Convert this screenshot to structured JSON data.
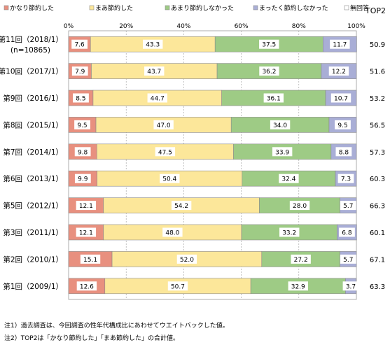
{
  "colors": {
    "seg1": "#e8907f",
    "seg2": "#fce79a",
    "seg3": "#9ecb85",
    "seg4": "#a9aed6",
    "seg5": "#ffffff",
    "border": "#8a8a8a",
    "grid": "#9a9a9a"
  },
  "chart_data": {
    "type": "bar",
    "orientation": "horizontal",
    "stacked": true,
    "xlim": [
      0,
      100
    ],
    "x_tick_labels": [
      "0%",
      "20%",
      "40%",
      "60%",
      "80%",
      "100%"
    ],
    "legend": {
      "placement": "top",
      "entries": [
        "かなり節約した",
        "まあ節約した",
        "あまり節約しなかった",
        "まったく節約しなかった",
        "無回答"
      ]
    },
    "top2_header": "TOP2",
    "categories": [
      [
        "第11回（2018/1）",
        "(n=10865)"
      ],
      [
        "第10回（2017/1）"
      ],
      [
        "第9回（2016/1）"
      ],
      [
        "第8回（2015/1）"
      ],
      [
        "第7回（2014/1）"
      ],
      [
        "第6回（2013/1）"
      ],
      [
        "第5回（2012/1）"
      ],
      [
        "第3回（2011/1）"
      ],
      [
        "第2回（2010/1）"
      ],
      [
        "第1回（2009/1）"
      ]
    ],
    "series": [
      {
        "name": "かなり節約した",
        "values": [
          7.6,
          7.9,
          8.5,
          9.5,
          9.8,
          9.9,
          12.1,
          12.1,
          15.1,
          12.6
        ]
      },
      {
        "name": "まあ節約した",
        "values": [
          43.3,
          43.7,
          44.7,
          47.0,
          47.5,
          50.4,
          54.2,
          48.0,
          52.0,
          50.7
        ]
      },
      {
        "name": "あまり節約しなかった",
        "values": [
          37.5,
          36.2,
          36.1,
          34.0,
          33.9,
          32.4,
          28.0,
          33.2,
          27.2,
          32.9
        ]
      },
      {
        "name": "まったく節約しなかった",
        "values": [
          11.7,
          12.2,
          10.7,
          9.5,
          8.8,
          7.3,
          5.7,
          6.8,
          5.7,
          3.7
        ]
      },
      {
        "name": "無回答",
        "values": [
          0.0,
          0.0,
          0.0,
          0.0,
          0.0,
          0.0,
          0.0,
          0.0,
          0.0,
          0.0
        ]
      }
    ],
    "value_labels": [
      [
        "7.6",
        "43.3",
        "37.5",
        "11.7"
      ],
      [
        "7.9",
        "43.7",
        "36.2",
        "12.2"
      ],
      [
        "8.5",
        "44.7",
        "36.1",
        "10.7"
      ],
      [
        "9.5",
        "47.0",
        "34.0",
        "9.5"
      ],
      [
        "9.8",
        "47.5",
        "33.9",
        "8.8"
      ],
      [
        "9.9",
        "50.4",
        "32.4",
        "7.3"
      ],
      [
        "12.1",
        "54.2",
        "28.0",
        "5.7"
      ],
      [
        "12.1",
        "48.0",
        "33.2",
        "6.8"
      ],
      [
        "15.1",
        "52.0",
        "27.2",
        "5.7"
      ],
      [
        "12.6",
        "50.7",
        "32.9",
        "3.7"
      ]
    ],
    "top2_values": [
      "50.9",
      "51.6",
      "53.2",
      "56.5",
      "57.3",
      "60.3",
      "66.3",
      "60.1",
      "67.1",
      "63.3"
    ]
  },
  "notes": {
    "note1": "注1）過去調査は、今回調査の性年代構成比にあわせてウエイトバックした値。",
    "note2": "注2）TOP2は「かなり節約した」「まあ節約した」の合計値。"
  }
}
